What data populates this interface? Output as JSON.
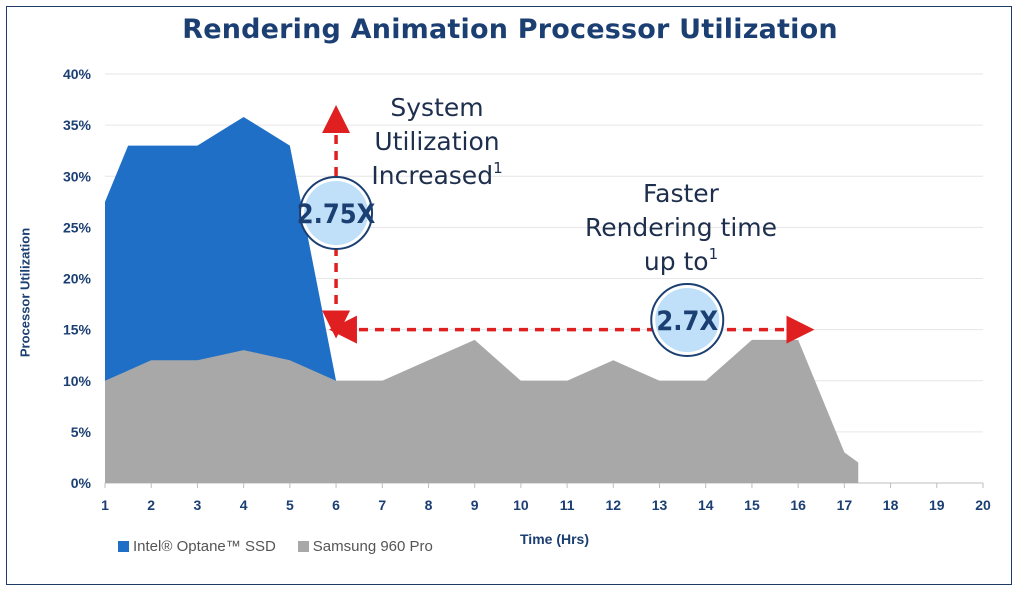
{
  "chart_data": {
    "type": "area",
    "title": "Rendering Animation Processor Utilization",
    "xlabel": "Time (Hrs)",
    "ylabel": "Processor Utilization",
    "x": [
      1,
      2,
      3,
      4,
      5,
      6,
      7,
      8,
      9,
      10,
      11,
      12,
      13,
      14,
      15,
      16,
      17,
      17.2,
      17.3
    ],
    "xlim": [
      1,
      20
    ],
    "ylim": [
      0,
      40
    ],
    "x_ticks": [
      "1",
      "2",
      "3",
      "4",
      "5",
      "6",
      "7",
      "8",
      "9",
      "10",
      "11",
      "12",
      "13",
      "14",
      "15",
      "16",
      "17",
      "18",
      "19",
      "20"
    ],
    "y_ticks": [
      "0%",
      "5%",
      "10%",
      "15%",
      "20%",
      "25%",
      "30%",
      "35%",
      "40%"
    ],
    "grid": true,
    "legend_position": "bottom-left",
    "series": [
      {
        "name": "Intel® Optane™ SSD",
        "color": "#1f6fc6",
        "points": [
          [
            1,
            27.5
          ],
          [
            1.5,
            33
          ],
          [
            2,
            33
          ],
          [
            3,
            33
          ],
          [
            4,
            35.8
          ],
          [
            5,
            33
          ],
          [
            6,
            10
          ]
        ]
      },
      {
        "name": "Samsung 960 Pro",
        "color": "#a8a8a8",
        "points": [
          [
            1,
            10
          ],
          [
            2,
            12
          ],
          [
            3,
            12
          ],
          [
            4,
            13
          ],
          [
            5,
            12
          ],
          [
            6,
            10
          ],
          [
            7,
            10
          ],
          [
            8,
            12
          ],
          [
            9,
            14
          ],
          [
            10,
            10
          ],
          [
            11,
            10
          ],
          [
            12,
            12
          ],
          [
            13,
            10
          ],
          [
            14,
            10
          ],
          [
            15,
            14
          ],
          [
            16,
            14
          ],
          [
            17,
            3
          ],
          [
            17.3,
            2
          ],
          [
            17.3,
            0
          ]
        ]
      }
    ],
    "annotations": {
      "vertical": {
        "text_lines": [
          "System",
          "Utilization",
          "Increased"
        ],
        "superscript": "1",
        "badge": "2.75X"
      },
      "horizontal": {
        "text_lines": [
          "Faster",
          "Rendering time",
          "up to"
        ],
        "superscript": "1",
        "badge": "2.7X"
      }
    }
  },
  "legend": {
    "items": [
      {
        "label": "Intel® Optane™ SSD",
        "color": "#1f6fc6"
      },
      {
        "label": "Samsung 960 Pro",
        "color": "#a8a8a8"
      }
    ]
  },
  "colors": {
    "arrow": "#e02020",
    "axis_text": "#1b3f72",
    "badge_fill": "#bfe0f8",
    "badge_ring": "#1b3f72"
  }
}
